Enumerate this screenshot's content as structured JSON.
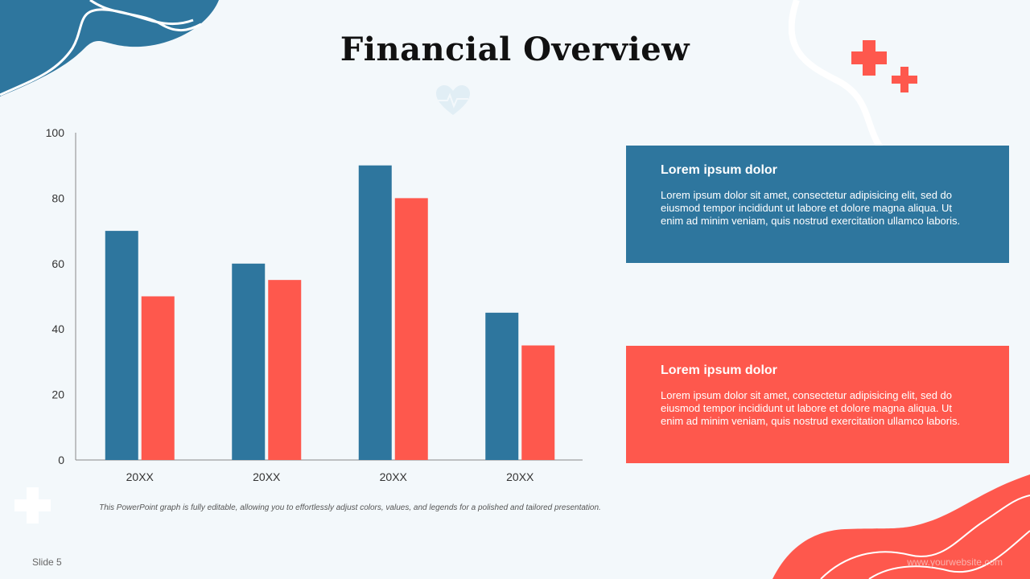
{
  "title": "Financial Overview",
  "colors": {
    "blue": "#2e769e",
    "red": "#fe584d",
    "background": "#f3f8fb"
  },
  "chart_data": {
    "type": "bar",
    "categories": [
      "20XX",
      "20XX",
      "20XX",
      "20XX"
    ],
    "series": [
      {
        "values": [
          70,
          60,
          90,
          45
        ],
        "color": "#2e769e"
      },
      {
        "values": [
          50,
          55,
          80,
          35
        ],
        "color": "#fe584d"
      }
    ],
    "ylim": [
      0,
      100
    ],
    "yticks": [
      0,
      20,
      40,
      60,
      80,
      100
    ],
    "grid": false,
    "legend": "none"
  },
  "caption": "This PowerPoint graph is fully editable, allowing you to effortlessly adjust colors, values, and legends for a polished and tailored presentation.",
  "cards": [
    {
      "heading": "Lorem ipsum dolor",
      "body": "Lorem ipsum dolor sit amet, consectetur adipisicing elit, sed do eiusmod tempor incididunt ut labore et dolore magna aliqua. Ut enim ad minim veniam, quis nostrud exercitation ullamco laboris."
    },
    {
      "heading": "Lorem ipsum dolor",
      "body": "Lorem ipsum dolor sit amet, consectetur adipisicing elit, sed do eiusmod tempor incididunt ut labore et dolore magna aliqua. Ut enim ad minim veniam, quis nostrud exercitation ullamco laboris."
    }
  ],
  "footer": {
    "slide": "Slide 5",
    "website": "www.yourwebsite.com"
  },
  "icons": [
    "plus-icon",
    "plus-icon",
    "plus-icon",
    "heart-pulse-icon"
  ]
}
